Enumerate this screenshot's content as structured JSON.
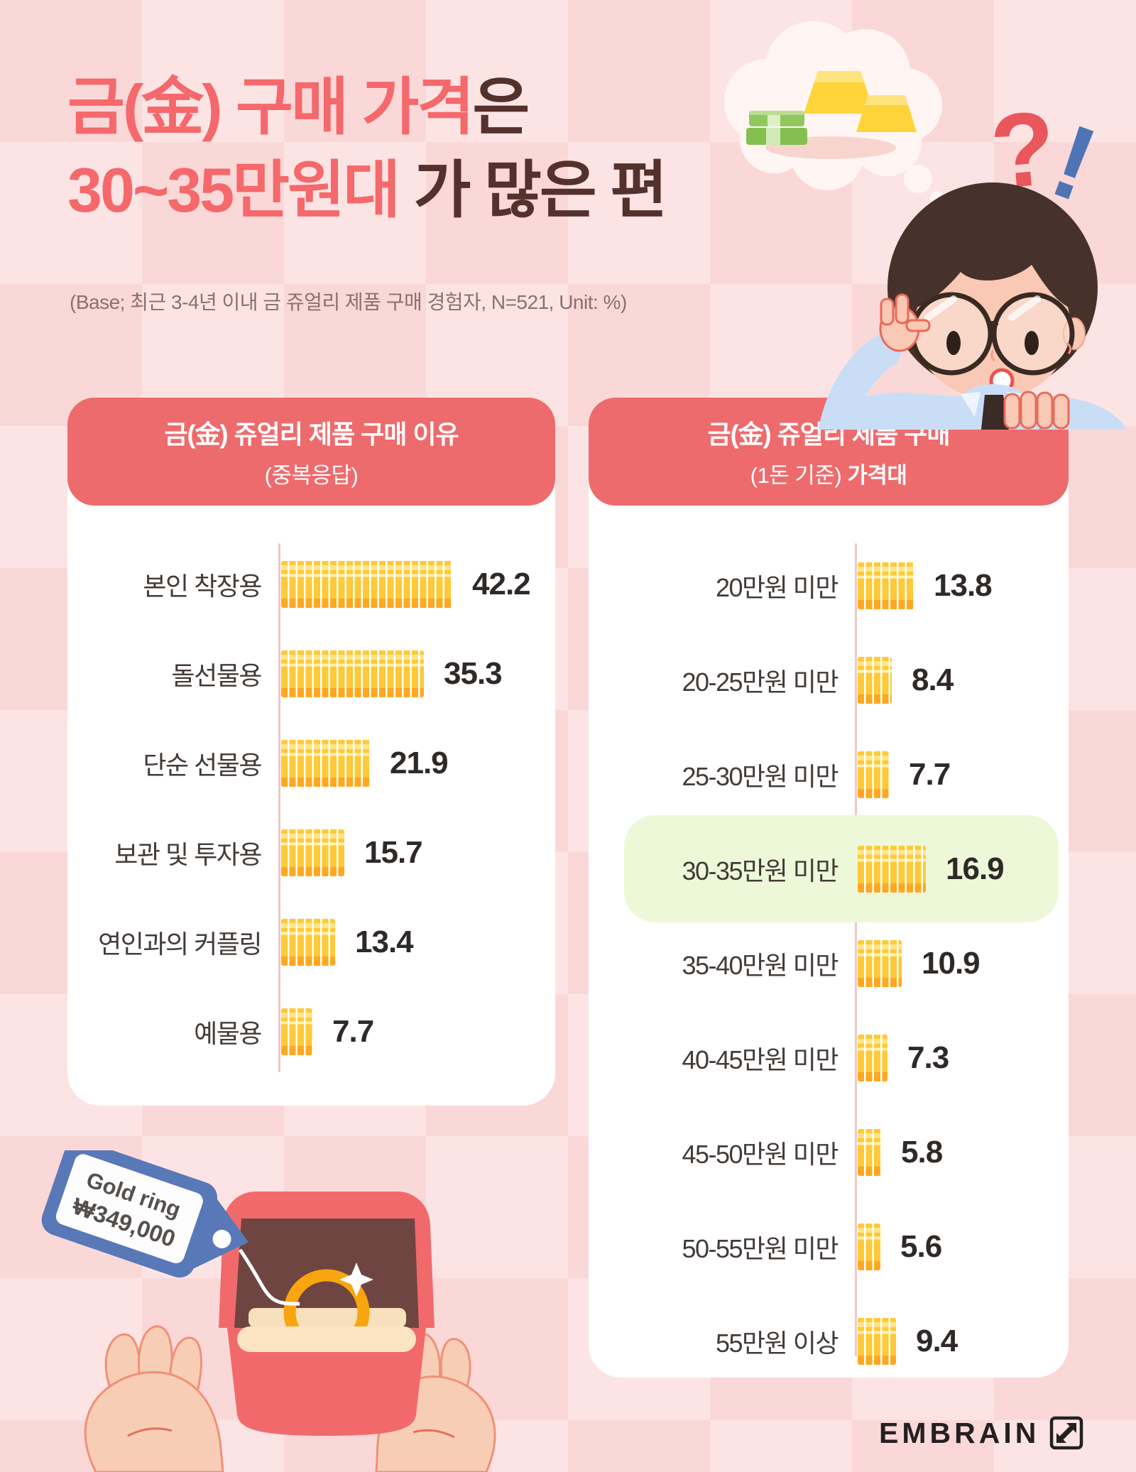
{
  "title": {
    "line1_accent": "금(金) 구매 가격",
    "line1_rest": "은",
    "line2_accent": "30~35만원대",
    "line2_rest": " 가 많은 편"
  },
  "base_note": "(Base; 최근 3-4년 이내 금 쥬얼리 제품 구매 경험자, N=521, Unit: %)",
  "decorations": {
    "question_mark": "?",
    "exclamation_mark": "!",
    "tag_line1": "Gold ring",
    "tag_line2": "₩349,000"
  },
  "footer": {
    "brand": "EMBRAIN"
  },
  "colors": {
    "background": "#FBD8D8",
    "title_accent": "#F5686B",
    "title_dark": "#54312D",
    "header_red": "#EE6B6D",
    "panel_white": "#FFFFFF",
    "bar_gold": "#FFC937",
    "bar_gold_light": "#FFE588",
    "bar_gold_dark": "#FFA81F",
    "highlight_green": "#EDF8D8",
    "axis_pink": "#EEC8C8",
    "question_red": "#E9565C",
    "exclamation_blue": "#4E74B5",
    "tag_blue": "#5878B8"
  },
  "chart_data": [
    {
      "type": "bar",
      "orientation": "horizontal",
      "title": "금(金) 쥬얼리 제품 구매 이유 (중복응답)",
      "header_line1": "금(金) 쥬얼리 제품 구매 이유",
      "header_line2": "(중복응답)",
      "unit": "%",
      "xlim": [
        0,
        45
      ],
      "bar_style": "gold-ingot-segments",
      "categories": [
        "본인 착장용",
        "돌선물용",
        "단순 선물용",
        "보관 및 투자용",
        "연인과의 커플링",
        "예물용"
      ],
      "values": [
        42.2,
        35.3,
        21.9,
        15.7,
        13.4,
        7.7
      ]
    },
    {
      "type": "bar",
      "orientation": "horizontal",
      "title": "금(金) 쥬얼리 제품 구매 (1돈 기준) 가격대",
      "header_line1": "금(金) 쥬얼리 제품 구매",
      "header_line2_normal": "(1돈 기준) ",
      "header_line2_bold": "가격대",
      "unit": "%",
      "xlim": [
        0,
        45
      ],
      "bar_style": "gold-ingot-segments",
      "highlight_index": 3,
      "highlight_color": "#EDF8D8",
      "categories": [
        "20만원 미만",
        "20-25만원 미만",
        "25-30만원 미만",
        "30-35만원 미만",
        "35-40만원 미만",
        "40-45만원 미만",
        "45-50만원 미만",
        "50-55만원 미만",
        "55만원 이상"
      ],
      "values": [
        13.8,
        8.4,
        7.7,
        16.9,
        10.9,
        7.3,
        5.8,
        5.6,
        9.4
      ]
    }
  ]
}
